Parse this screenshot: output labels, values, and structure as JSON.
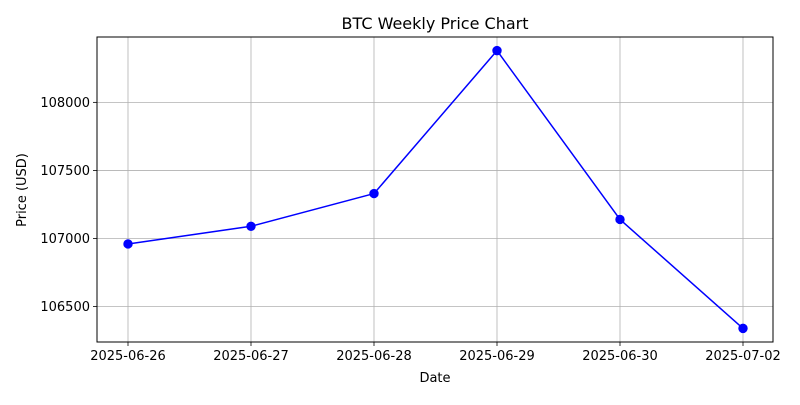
{
  "chart_data": {
    "type": "line",
    "title": "BTC Weekly Price Chart",
    "xlabel": "Date",
    "ylabel": "Price (USD)",
    "x": [
      "2025-06-26",
      "2025-06-27",
      "2025-06-28",
      "2025-06-29",
      "2025-06-30",
      "2025-07-02"
    ],
    "series": [
      {
        "values": [
          106960,
          107090,
          107330,
          108380,
          107140,
          106340
        ],
        "color": "#0000ff",
        "marker": "circle"
      }
    ],
    "ylim": [
      106240,
      108480
    ],
    "yticks": [
      106500,
      107000,
      107500,
      108000
    ],
    "ytick_labels": [
      "106500",
      "107000",
      "107500",
      "108000"
    ],
    "grid": true
  }
}
